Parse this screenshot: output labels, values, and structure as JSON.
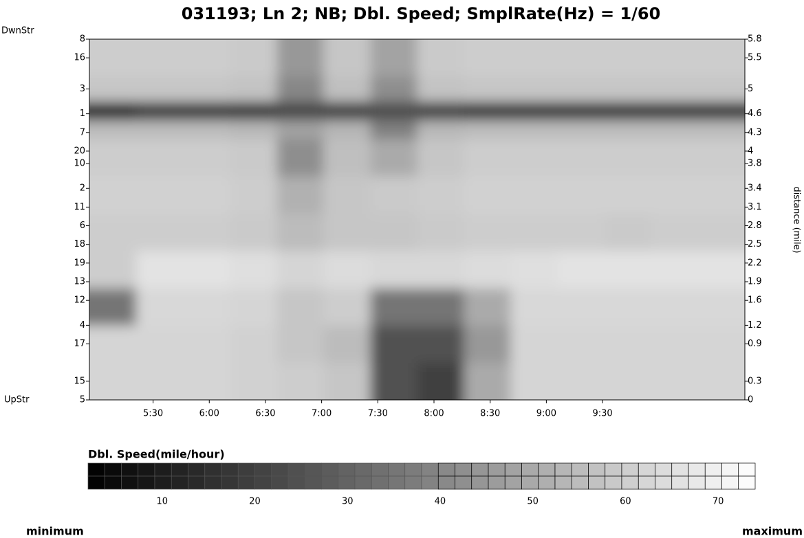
{
  "chart_data": {
    "type": "heatmap",
    "title": "031193; Ln 2; NB; Dbl. Speed; SmplRate(Hz) = 1/60",
    "y_label": "distance (mile)",
    "downstream_label": "DwnStr",
    "upstream_label": "UpStr",
    "stations": [
      8,
      16,
      3,
      1,
      7,
      20,
      10,
      2,
      11,
      6,
      18,
      19,
      13,
      12,
      4,
      17,
      15,
      5
    ],
    "yticks": [
      5.8,
      5.5,
      5,
      4.6,
      4.3,
      4,
      3.8,
      3.4,
      3.1,
      2.8,
      2.5,
      2.2,
      1.9,
      1.6,
      1.2,
      0.9,
      0.3,
      0
    ],
    "ylim": [
      0,
      5.8
    ],
    "xlim": [
      296,
      646
    ],
    "xticks": [
      {
        "value": 330,
        "label": "5:30"
      },
      {
        "value": 360,
        "label": "6:00"
      },
      {
        "value": 390,
        "label": "6:30"
      },
      {
        "value": 420,
        "label": "7:00"
      },
      {
        "value": 450,
        "label": "7:30"
      },
      {
        "value": 480,
        "label": "8:00"
      },
      {
        "value": 510,
        "label": "8:30"
      },
      {
        "value": 540,
        "label": "9:00"
      },
      {
        "value": 570,
        "label": "9:30"
      }
    ],
    "xbins": [
      296,
      321,
      346,
      371,
      396,
      421,
      446,
      471,
      496,
      521,
      546,
      571,
      596,
      621,
      646
    ],
    "ybins": [
      0,
      0.6,
      1.2,
      1.8,
      2.4,
      3.0,
      3.6,
      4.2,
      4.5,
      4.8,
      5.2,
      5.8
    ],
    "z": [
      [
        62,
        62,
        62,
        61,
        60,
        58,
        25,
        20,
        50,
        62,
        62,
        62,
        62,
        62
      ],
      [
        62,
        62,
        62,
        61,
        58,
        55,
        25,
        25,
        45,
        62,
        62,
        62,
        62,
        62
      ],
      [
        35,
        63,
        63,
        62,
        58,
        60,
        35,
        35,
        50,
        63,
        63,
        63,
        63,
        63
      ],
      [
        60,
        66,
        66,
        65,
        62,
        64,
        63,
        63,
        64,
        65,
        66,
        66,
        66,
        66
      ],
      [
        60,
        60,
        60,
        59,
        55,
        58,
        58,
        59,
        60,
        60,
        60,
        59,
        60,
        60
      ],
      [
        61,
        61,
        61,
        60,
        52,
        58,
        59,
        60,
        61,
        61,
        61,
        61,
        61,
        61
      ],
      [
        60,
        60,
        60,
        59,
        42,
        56,
        50,
        58,
        60,
        60,
        60,
        60,
        60,
        60
      ],
      [
        55,
        55,
        55,
        54,
        48,
        53,
        38,
        54,
        55,
        55,
        55,
        55,
        55,
        55
      ],
      [
        12,
        18,
        18,
        18,
        22,
        20,
        24,
        20,
        18,
        18,
        18,
        18,
        18,
        18
      ],
      [
        58,
        58,
        58,
        57,
        40,
        56,
        42,
        57,
        58,
        58,
        58,
        58,
        58,
        58
      ],
      [
        60,
        60,
        60,
        59,
        45,
        58,
        48,
        59,
        60,
        60,
        60,
        60,
        60,
        60
      ]
    ],
    "colorbar_label": "Dbl. Speed(mile/hour)",
    "clim": [
      2,
      74
    ],
    "cticks": [
      10,
      20,
      30,
      40,
      50,
      60,
      70
    ],
    "min_label": "minimum",
    "max_label": "maximum"
  }
}
